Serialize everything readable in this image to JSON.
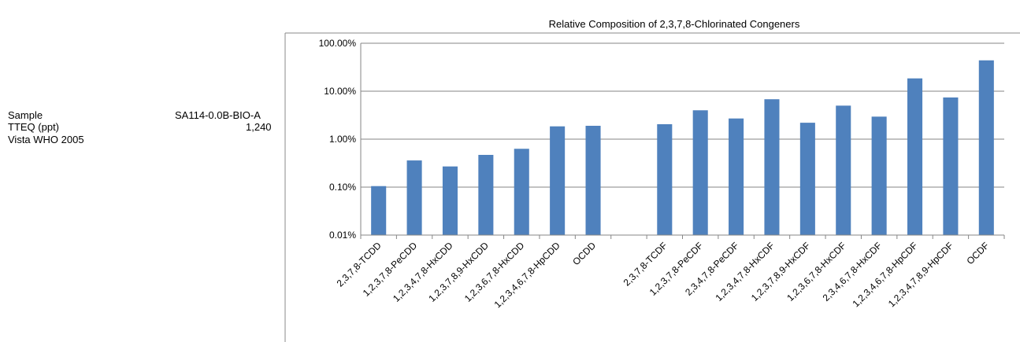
{
  "info": {
    "sample_label": "Sample",
    "sample_value": "SA114-0.0B-BIO-A",
    "tteq_label": "TTEQ (ppt)",
    "tteq_value": "1,240",
    "tteq_note": "Vista WHO 2005"
  },
  "chart_data": {
    "type": "bar",
    "title": "Relative Composition of 2,3,7,8-Chlorinated Congeners",
    "xlabel": "",
    "ylabel": "",
    "yscale": "log",
    "ylim": [
      0.01,
      100
    ],
    "yticks": [
      "100.00%",
      "10.00%",
      "1.00%",
      "0.10%",
      "0.01%"
    ],
    "grid": true,
    "bar_color": "#4f81bd",
    "categories": [
      "2,3,7,8-TCDD",
      "1,2,3,7,8-PeCDD",
      "1,2,3,4,7,8-HxCDD",
      "1,2,3,7,8,9-HxCDD",
      "1,2,3,6,7,8-HxCDD",
      "1,2,3,4,6,7,8-HpCDD",
      "OCDD",
      "",
      "2,3,7,8-TCDF",
      "1,2,3,7,8-PeCDF",
      "2,3,4,7,8-PeCDF",
      "1,2,3,4,7,8-HxCDF",
      "1,2,3,7,8,9-HxCDF",
      "1,2,3,6,7,8-HxCDF",
      "2,3,4,6,7,8-HxCDF",
      "1,2,3,4,6,7,8-HpCDF",
      "1,2,3,4,7,8,9-HpCDF",
      "OCDF"
    ],
    "values": [
      0.105,
      0.36,
      0.27,
      0.47,
      0.63,
      1.85,
      1.9,
      null,
      2.05,
      4.0,
      2.7,
      6.8,
      2.2,
      5.0,
      2.95,
      18.5,
      7.4,
      44.0
    ]
  }
}
